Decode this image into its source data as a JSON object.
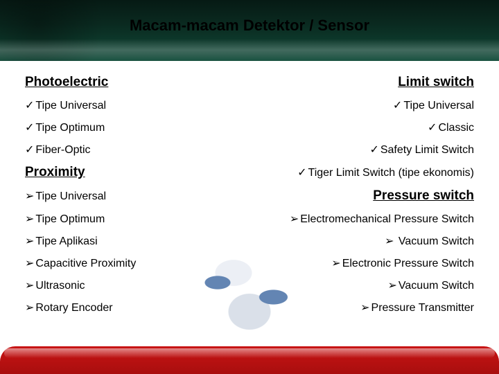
{
  "title": "Macam-macam Detektor / Sensor",
  "glyphs": {
    "check": "✓",
    "arrow": "➢"
  },
  "colors": {
    "header_bg_top": "#061a14",
    "header_bg_bottom": "#0f4a38",
    "footer_bg": "#c81414",
    "text": "#000000",
    "background": "#ffffff"
  },
  "typography": {
    "title_fontsize": 22,
    "heading_fontsize": 19,
    "item_fontsize": 16,
    "font_family": "Arial"
  },
  "left": {
    "section1": {
      "heading": "Photoelectric",
      "items": [
        "Tipe Universal",
        "Tipe Optimum",
        "Fiber-Optic"
      ],
      "bullet": "check"
    },
    "section2": {
      "heading": "Proximity",
      "items": [
        "Tipe Universal",
        "Tipe Optimum",
        "Tipe Aplikasi",
        "Capacitive Proximity",
        "Ultrasonic",
        "Rotary Encoder"
      ],
      "bullet": "arrow"
    }
  },
  "right": {
    "section1": {
      "heading": "Limit switch",
      "items": [
        "Tipe Universal",
        "Classic",
        "Safety Limit Switch",
        "Tiger Limit Switch (tipe ekonomis)"
      ],
      "bullet": "check"
    },
    "section2": {
      "heading": "Pressure switch",
      "items": [
        "Electromechanical Pressure Switch",
        " Vacuum Switch",
        "Electronic Pressure Switch",
        "Vacuum Switch",
        "Pressure Transmitter"
      ],
      "bullet": "arrow"
    }
  }
}
